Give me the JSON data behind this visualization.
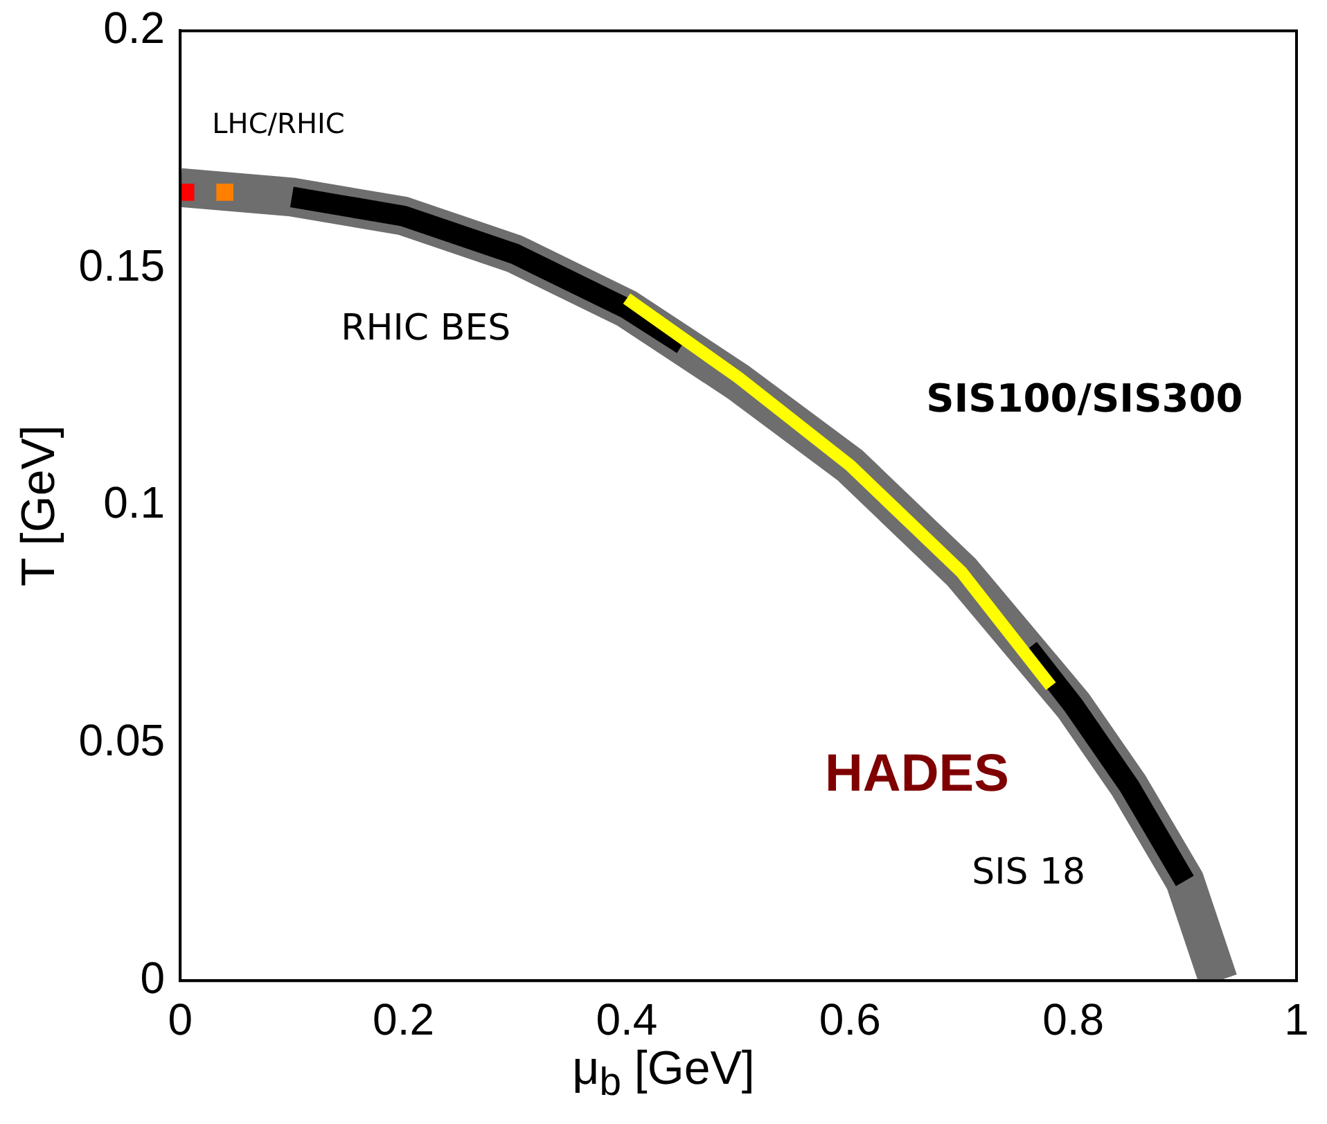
{
  "chart_data": {
    "type": "line",
    "xlabel": "μ$_{b}$ [GeV]",
    "ylabel": "T [GeV]",
    "xlim": [
      0,
      1
    ],
    "xticks": [
      0,
      0.2,
      0.4,
      0.6,
      0.8,
      1
    ],
    "ylim": [
      0,
      0.2
    ],
    "yticks": [
      0,
      0.05,
      0.1,
      0.15,
      0.2
    ],
    "grid": false,
    "legend": false,
    "series": [
      {
        "color": "#6e6e6e",
        "x": [
          0,
          0.1,
          0.2,
          0.3,
          0.4,
          0.5,
          0.6,
          0.7,
          0.8,
          0.85,
          0.9,
          0.93
        ],
        "values": [
          0.167,
          0.165,
          0.161,
          0.153,
          0.1415,
          0.126,
          0.1085,
          0.086,
          0.058,
          0.041,
          0.021,
          0
        ]
      },
      {
        "color": "#000000",
        "x": [
          0.1,
          0.2,
          0.3,
          0.4,
          0.45
        ],
        "values": [
          0.165,
          0.161,
          0.153,
          0.1415,
          0.134
        ]
      },
      {
        "color": "#000000",
        "x": [
          0.76,
          0.8,
          0.85,
          0.9
        ],
        "values": [
          0.07,
          0.058,
          0.041,
          0.021
        ]
      },
      {
        "color": "#ffff00",
        "x": [
          0.4,
          0.5,
          0.6,
          0.7,
          0.78
        ],
        "values": [
          0.1436,
          0.127,
          0.1085,
          0.086,
          0.062
        ]
      },
      {
        "type": "scatter",
        "color": "#ff0000",
        "marker": "square",
        "x": [
          0.005
        ],
        "values": [
          0.166
        ]
      },
      {
        "type": "scatter",
        "color": "#ff8000",
        "marker": "square",
        "x": [
          0.04
        ],
        "values": [
          0.166
        ]
      }
    ],
    "annotations": [
      "LHC/RHIC",
      "RHIC BES",
      "SIS100/SIS300",
      "HADES",
      "SIS 18"
    ]
  }
}
